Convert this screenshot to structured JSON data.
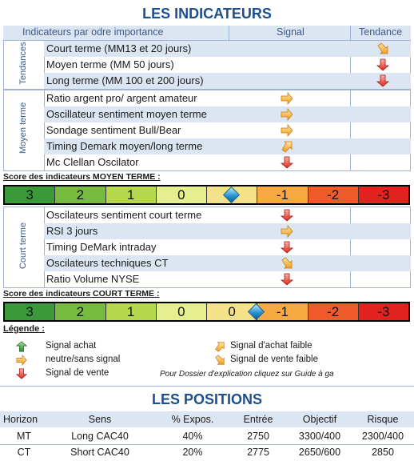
{
  "indicators": {
    "title": "LES INDICATEURS",
    "header": {
      "col1": "Indicateurs par odre importance",
      "col2": "Signal",
      "col3": "Tendance"
    },
    "groups": [
      {
        "label": "Tendances",
        "rows": [
          {
            "label": "Court terme (MM13 et 20 jours)",
            "signal": "",
            "tendance": "down-right-arrow-icon"
          },
          {
            "label": "Moyen terme (MM 50 jours)",
            "signal": "",
            "tendance": "down-arrow-icon"
          },
          {
            "label": "Long terme (MM 100 et 200 jours)",
            "signal": "",
            "tendance": "down-arrow-icon"
          }
        ]
      },
      {
        "label": "Moyen terme",
        "rows": [
          {
            "label": "Ratio argent pro/ argent amateur",
            "signal": "right-arrow-icon"
          },
          {
            "label": "Oscillateur sentiment moyen terme",
            "signal": "right-arrow-icon"
          },
          {
            "label": "Sondage sentiment Bull/Bear",
            "signal": "right-arrow-icon"
          },
          {
            "label": "Timing Demark moyen/long terme",
            "signal": "up-right-arrow-icon"
          },
          {
            "label": "Mc Clellan Oscilator",
            "signal": "down-arrow-icon"
          }
        ]
      },
      {
        "label": "Court terme",
        "rows": [
          {
            "label": "Oscilateurs sentiment court terme",
            "signal": "down-arrow-icon"
          },
          {
            "label": "RSI 3 jours",
            "signal": "right-arrow-icon"
          },
          {
            "label": "Timing DeMark intraday",
            "signal": "down-arrow-icon"
          },
          {
            "label": "Oscilateurs techniques CT",
            "signal": "down-right-arrow-icon"
          },
          {
            "label": "Ratio Volume NYSE",
            "signal": "down-arrow-icon"
          }
        ]
      }
    ]
  },
  "score_moyen": {
    "label": "Score des indicateurs MOYEN TERME :",
    "cells": [
      "3",
      "2",
      "1",
      "0",
      "",
      "-1",
      "-2",
      "-3"
    ],
    "marker_index": 4
  },
  "score_court": {
    "label": "Score des indicateurs COURT TERME :",
    "cells": [
      "3",
      "2",
      "1",
      "0",
      "0",
      "-1",
      "-2",
      "-3"
    ],
    "marker_index": 5
  },
  "scale_colors": [
    "#3a9a3a",
    "#76bb3f",
    "#b6d84f",
    "#e6ef8f",
    "#f3e28a",
    "#f7a942",
    "#ef5a2a",
    "#e2221f"
  ],
  "legend": {
    "title": "Légende :",
    "items": [
      {
        "icon": "up-arrow-icon",
        "text": "Signal achat"
      },
      {
        "icon": "right-arrow-icon",
        "text": "neutre/sans signal"
      },
      {
        "icon": "down-arrow-icon",
        "text": "Signal de vente"
      },
      {
        "icon": "up-right-arrow-icon",
        "text": "Signal d'achat faible"
      },
      {
        "icon": "down-right-arrow-icon",
        "text": "Signal de vente faible"
      }
    ],
    "note": "Pour Dossier d'explication cliquez sur Guide à ga"
  },
  "positions": {
    "title": "LES POSITIONS",
    "headers": [
      "Horizon",
      "Sens",
      "% Expos.",
      "Entrée",
      "Objectif",
      "Risque"
    ],
    "rows": [
      [
        "MT",
        "Long CAC40",
        "40%",
        "2750",
        "3300/400",
        "2300/400"
      ],
      [
        "CT",
        "Short CAC40",
        "20%",
        "2775",
        "2650/600",
        "2850"
      ]
    ]
  },
  "colors": {
    "title": "#1f4e8c",
    "shade": "#dce6f2",
    "orange_arrow": "#f5a623",
    "red_arrow": "#e2221f",
    "green_arrow": "#2e8b2e"
  }
}
